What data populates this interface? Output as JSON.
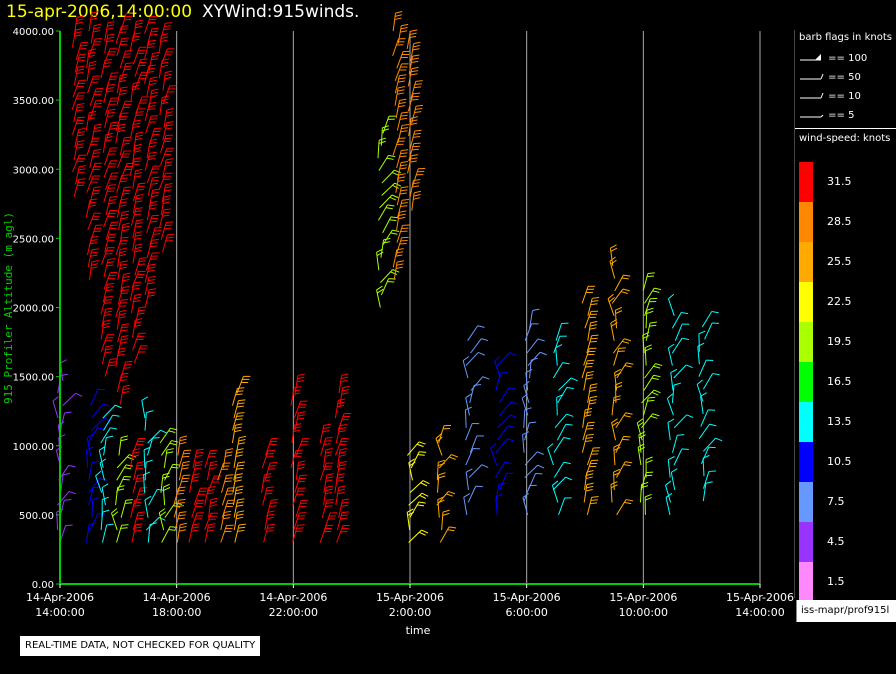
{
  "title": {
    "date": "15-apr-2006,14:00:00",
    "name": "XYWind:915winds."
  },
  "colors": {
    "background": "#000000",
    "title_date": "#ffff00",
    "axis": "#00cc00",
    "grid": "#aaaaaa"
  },
  "legend": {
    "flags_heading": "barb flags in knots",
    "flags": [
      {
        "label": "== 100",
        "icon": "pennant-barb-icon"
      },
      {
        "label": "== 50",
        "icon": "half-pennant-barb-icon"
      },
      {
        "label": "== 10",
        "icon": "full-barb-icon"
      },
      {
        "label": "== 5",
        "icon": "half-barb-icon"
      }
    ],
    "speed_heading": "wind-speed: knots",
    "speed_bins": [
      {
        "label": "31.5",
        "color": "#ff0000"
      },
      {
        "label": "28.5",
        "color": "#ff8800"
      },
      {
        "label": "25.5",
        "color": "#ffaa00"
      },
      {
        "label": "22.5",
        "color": "#ffff00"
      },
      {
        "label": "19.5",
        "color": "#aaff00"
      },
      {
        "label": "16.5",
        "color": "#00ff00"
      },
      {
        "label": "13.5",
        "color": "#00ffff"
      },
      {
        "label": "10.5",
        "color": "#0000ff"
      },
      {
        "label": "7.5",
        "color": "#6699ff"
      },
      {
        "label": "4.5",
        "color": "#9933ff"
      },
      {
        "label": "1.5",
        "color": "#ff88ff"
      }
    ]
  },
  "source_label": "iss-mapr/prof915l",
  "notice": "REAL-TIME DATA, NOT CHECKED FOR QUALITY",
  "chart_data": {
    "type": "scatter",
    "title": "XYWind:915winds.",
    "xlabel": "time",
    "ylabel": "915 Profiler Altitude (m agl)",
    "ylim": [
      0,
      4000
    ],
    "yticks": [
      "0.00",
      "500.00",
      "1000.00",
      "1500.00",
      "2000.00",
      "2500.00",
      "3000.00",
      "3500.00",
      "4000.00"
    ],
    "xticks": [
      {
        "date": "14-Apr-2006",
        "time": "14:00:00"
      },
      {
        "date": "14-Apr-2006",
        "time": "18:00:00"
      },
      {
        "date": "14-Apr-2006",
        "time": "22:00:00"
      },
      {
        "date": "15-Apr-2006",
        "time": "2:00:00"
      },
      {
        "date": "15-Apr-2006",
        "time": "6:00:00"
      },
      {
        "date": "15-Apr-2006",
        "time": "10:00:00"
      },
      {
        "date": "15-Apr-2006",
        "time": "14:00:00"
      }
    ],
    "xrange_hours": [
      0,
      24
    ],
    "grid": "vertical lines at x ticks",
    "series": [
      {
        "hour": 0.0,
        "alt_range": [
          300,
          1500
        ],
        "speed": 5
      },
      {
        "hour": 0.5,
        "alt_range": [
          2800,
          4000
        ],
        "speed": 32
      },
      {
        "hour": 1.0,
        "alt_range": [
          300,
          1300
        ],
        "speed": 10
      },
      {
        "hour": 1.0,
        "alt_range": [
          2200,
          4000
        ],
        "speed": 32
      },
      {
        "hour": 1.5,
        "alt_range": [
          300,
          1200
        ],
        "speed": 12
      },
      {
        "hour": 1.5,
        "alt_range": [
          1500,
          4000
        ],
        "speed": 32
      },
      {
        "hour": 2.0,
        "alt_range": [
          300,
          1000
        ],
        "speed": 18
      },
      {
        "hour": 2.0,
        "alt_range": [
          1300,
          4000
        ],
        "speed": 32
      },
      {
        "hour": 2.5,
        "alt_range": [
          300,
          1000
        ],
        "speed": 30
      },
      {
        "hour": 2.5,
        "alt_range": [
          1600,
          4000
        ],
        "speed": 32
      },
      {
        "hour": 3.0,
        "alt_range": [
          300,
          1200
        ],
        "speed": 14
      },
      {
        "hour": 3.0,
        "alt_range": [
          2000,
          4000
        ],
        "speed": 32
      },
      {
        "hour": 3.5,
        "alt_range": [
          300,
          1100
        ],
        "speed": 20
      },
      {
        "hour": 3.5,
        "alt_range": [
          2400,
          4000
        ],
        "speed": 32
      },
      {
        "hour": 4.0,
        "alt_range": [
          300,
          1000
        ],
        "speed": 28
      },
      {
        "hour": 4.5,
        "alt_range": [
          300,
          900
        ],
        "speed": 32
      },
      {
        "hour": 5.0,
        "alt_range": [
          300,
          900
        ],
        "speed": 32
      },
      {
        "hour": 5.5,
        "alt_range": [
          300,
          900
        ],
        "speed": 28
      },
      {
        "hour": 6.0,
        "alt_range": [
          300,
          1400
        ],
        "speed": 26
      },
      {
        "hour": 7.0,
        "alt_range": [
          300,
          1000
        ],
        "speed": 32
      },
      {
        "hour": 8.0,
        "alt_range": [
          300,
          1400
        ],
        "speed": 32
      },
      {
        "hour": 9.0,
        "alt_range": [
          300,
          1100
        ],
        "speed": 30
      },
      {
        "hour": 9.5,
        "alt_range": [
          300,
          1400
        ],
        "speed": 32
      },
      {
        "hour": 11.0,
        "alt_range": [
          2000,
          3300
        ],
        "speed": 20
      },
      {
        "hour": 11.5,
        "alt_range": [
          2200,
          4000
        ],
        "speed": 28
      },
      {
        "hour": 12.0,
        "alt_range": [
          2700,
          3900
        ],
        "speed": 28
      },
      {
        "hour": 12.0,
        "alt_range": [
          300,
          1000
        ],
        "speed": 22
      },
      {
        "hour": 13.0,
        "alt_range": [
          300,
          1100
        ],
        "speed": 24
      },
      {
        "hour": 14.0,
        "alt_range": [
          500,
          1800
        ],
        "speed": 8
      },
      {
        "hour": 15.0,
        "alt_range": [
          500,
          1600
        ],
        "speed": 10
      },
      {
        "hour": 16.0,
        "alt_range": [
          500,
          1900
        ],
        "speed": 6
      },
      {
        "hour": 17.0,
        "alt_range": [
          500,
          1800
        ],
        "speed": 12
      },
      {
        "hour": 18.0,
        "alt_range": [
          500,
          2100
        ],
        "speed": 26
      },
      {
        "hour": 19.0,
        "alt_range": [
          500,
          2300
        ],
        "speed": 24
      },
      {
        "hour": 20.0,
        "alt_range": [
          500,
          2200
        ],
        "speed": 18
      },
      {
        "hour": 21.0,
        "alt_range": [
          500,
          2000
        ],
        "speed": 14
      },
      {
        "hour": 22.0,
        "alt_range": [
          600,
          1900
        ],
        "speed": 12
      }
    ]
  }
}
